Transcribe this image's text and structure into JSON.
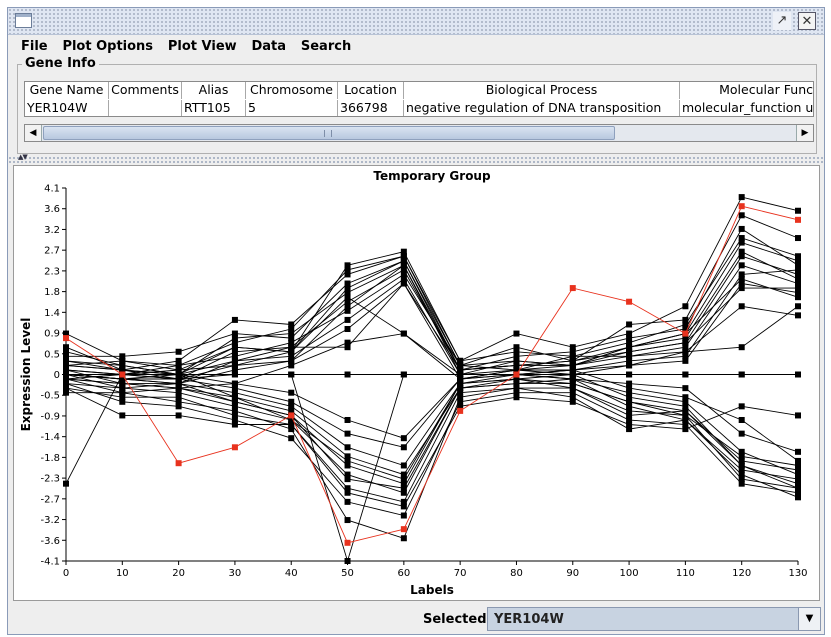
{
  "window": {
    "title": ""
  },
  "menu": [
    "File",
    "Plot Options",
    "Plot View",
    "Data",
    "Search"
  ],
  "gene_info": {
    "legend": "Gene Info",
    "columns": [
      "Gene Name",
      "Comments",
      "Alias",
      "Chromosome",
      "Location",
      "Biological Process",
      "Molecular Func"
    ],
    "row": [
      "YER104W",
      "",
      "RTT105",
      "5",
      "366798",
      "negative regulation of DNA transposition",
      "molecular_function u"
    ]
  },
  "chart_data": {
    "type": "line",
    "title": "Temporary Group",
    "xlabel": "Labels",
    "ylabel": "Expression Level",
    "xlim": [
      0,
      130
    ],
    "ylim": [
      -4.1,
      4.1
    ],
    "x": [
      0,
      10,
      20,
      30,
      40,
      50,
      60,
      70,
      80,
      90,
      100,
      110,
      120,
      130
    ],
    "x_ticks": [
      "0",
      "10",
      "20",
      "30",
      "40",
      "50",
      "60",
      "70",
      "80",
      "90",
      "100",
      "110",
      "120",
      "130"
    ],
    "y_ticks": [
      "4.1",
      "3.6",
      "3.2",
      "2.7",
      "2.3",
      "1.8",
      "1.4",
      "0.9",
      "0.5",
      "0",
      "-0.5",
      "-0.9",
      "-1.4",
      "-1.8",
      "-2.3",
      "-2.7",
      "-3.2",
      "-3.6",
      "-4.1"
    ],
    "highlight_color": "#e8321e",
    "series_color": "#000000",
    "highlighted": {
      "values": [
        0.8,
        0.0,
        -1.95,
        -1.6,
        -0.9,
        -3.7,
        -3.4,
        -0.8,
        0.0,
        1.9,
        1.6,
        0.9,
        3.7,
        3.4
      ]
    },
    "series": [
      {
        "values": [
          0.9,
          0.3,
          0.1,
          0.6,
          0.5,
          2.4,
          2.7,
          0.3,
          0.9,
          0.6,
          0.9,
          1.5,
          3.9,
          3.6
        ]
      },
      {
        "values": [
          0.6,
          0.1,
          0.3,
          1.2,
          1.1,
          2.2,
          2.6,
          0.2,
          0.6,
          0.3,
          1.1,
          1.2,
          3.5,
          3.0
        ]
      },
      {
        "values": [
          0.4,
          0.4,
          0.5,
          0.9,
          0.8,
          2.0,
          2.5,
          0.1,
          0.4,
          0.5,
          0.8,
          1.0,
          3.2,
          2.4
        ]
      },
      {
        "values": [
          0.3,
          0.2,
          0.0,
          0.8,
          0.9,
          1.8,
          2.4,
          0.0,
          0.3,
          0.2,
          0.6,
          0.9,
          2.9,
          2.5
        ]
      },
      {
        "values": [
          0.2,
          0.1,
          -0.1,
          0.5,
          0.6,
          1.6,
          2.3,
          0.1,
          0.2,
          0.3,
          0.5,
          0.7,
          2.6,
          2.2
        ]
      },
      {
        "values": [
          0.1,
          0.0,
          0.2,
          0.4,
          0.7,
          1.4,
          2.2,
          0.2,
          0.1,
          0.4,
          0.4,
          0.6,
          2.4,
          2.0
        ]
      },
      {
        "values": [
          0.0,
          -0.1,
          -0.2,
          0.3,
          0.4,
          1.2,
          2.1,
          0.0,
          0.0,
          0.1,
          0.3,
          0.4,
          2.2,
          2.3
        ]
      },
      {
        "values": [
          -0.1,
          0.0,
          0.1,
          0.2,
          0.3,
          1.0,
          2.0,
          -0.1,
          0.1,
          0.0,
          0.2,
          0.3,
          2.0,
          1.8
        ]
      },
      {
        "values": [
          0.2,
          0.3,
          0.2,
          0.7,
          1.0,
          2.3,
          2.6,
          0.3,
          0.5,
          0.4,
          0.7,
          1.1,
          3.0,
          2.6
        ]
      },
      {
        "values": [
          0.5,
          0.2,
          0.0,
          0.6,
          0.5,
          1.9,
          2.5,
          0.2,
          0.3,
          0.2,
          0.6,
          0.8,
          2.7,
          2.1
        ]
      },
      {
        "values": [
          0.1,
          -0.2,
          -0.3,
          -0.2,
          0.2,
          0.7,
          0.9,
          -0.1,
          0.0,
          0.1,
          0.2,
          0.5,
          1.5,
          1.3
        ]
      },
      {
        "values": [
          0.0,
          -0.3,
          -0.2,
          0.1,
          0.3,
          1.5,
          2.4,
          0.1,
          0.2,
          0.3,
          0.6,
          0.9,
          2.1,
          1.7
        ]
      },
      {
        "values": [
          -0.1,
          -0.4,
          -0.3,
          -0.6,
          -0.9,
          -2.0,
          -2.4,
          -0.2,
          -0.1,
          -0.2,
          -0.6,
          -0.8,
          -1.9,
          -2.1
        ]
      },
      {
        "values": [
          -0.2,
          -0.3,
          -0.4,
          -0.7,
          -1.0,
          -2.2,
          -2.6,
          -0.3,
          -0.2,
          -0.1,
          -0.7,
          -1.0,
          -2.1,
          -2.3
        ]
      },
      {
        "values": [
          -0.3,
          -0.5,
          -0.5,
          -0.9,
          -1.1,
          -2.5,
          -2.8,
          -0.4,
          -0.3,
          -0.3,
          -0.8,
          -0.9,
          -2.3,
          -2.5
        ]
      },
      {
        "values": [
          -0.1,
          -0.2,
          -0.3,
          -0.5,
          -0.8,
          -1.8,
          -2.2,
          -0.3,
          -0.1,
          0.0,
          -0.5,
          -0.7,
          -2.0,
          -2.4
        ]
      },
      {
        "values": [
          0.0,
          -0.1,
          -0.2,
          -0.4,
          -0.7,
          -1.6,
          -2.0,
          -0.2,
          0.0,
          -0.1,
          -0.4,
          -0.6,
          -1.7,
          -2.2
        ]
      },
      {
        "values": [
          -0.2,
          -0.6,
          -0.7,
          -1.0,
          -1.4,
          -2.8,
          -3.1,
          -0.6,
          -0.4,
          -0.4,
          -1.0,
          -1.1,
          -2.4,
          -2.6
        ]
      },
      {
        "values": [
          -0.4,
          -0.4,
          -0.6,
          -0.8,
          -1.2,
          -3.2,
          -3.6,
          -0.5,
          -0.3,
          -0.5,
          -1.2,
          -1.0,
          -2.2,
          -2.7
        ]
      },
      {
        "values": [
          0.1,
          0.0,
          -0.1,
          -0.3,
          -0.6,
          -1.3,
          -1.6,
          -0.1,
          0.1,
          0.1,
          -0.3,
          -0.5,
          -1.0,
          -1.9
        ]
      },
      {
        "values": [
          -0.1,
          -0.2,
          -0.2,
          -0.6,
          -0.9,
          -2.3,
          -2.5,
          -0.3,
          -0.2,
          -0.2,
          -0.6,
          -0.9,
          -1.8,
          -2.0
        ]
      },
      {
        "values": [
          0.0,
          -0.1,
          0.0,
          -0.5,
          -1.0,
          -1.9,
          -2.3,
          -0.2,
          -0.1,
          -0.3,
          -0.9,
          -0.8,
          -2.0,
          -2.5
        ]
      },
      {
        "values": [
          -0.3,
          -0.9,
          -0.9,
          -1.1,
          -1.1,
          -2.6,
          -2.9,
          -0.7,
          -0.5,
          -0.6,
          -1.1,
          -1.2,
          -0.7,
          -0.9
        ]
      },
      {
        "values": [
          0.3,
          0.1,
          0.0,
          -0.2,
          -0.4,
          -1.0,
          -1.4,
          -0.1,
          0.0,
          -0.1,
          -0.2,
          -0.3,
          -1.3,
          -1.7
        ]
      },
      {
        "values": [
          -2.4,
          0.0,
          -0.1,
          0.0,
          0.0,
          -4.1,
          0.0,
          0.0,
          0.0,
          0.0,
          0.0,
          0.0,
          0.0,
          0.0
        ]
      },
      {
        "values": [
          0.0,
          0.0,
          0.0,
          0.0,
          0.0,
          0.0,
          0.0,
          0.0,
          0.0,
          0.0,
          0.0,
          0.0,
          0.0,
          0.0
        ]
      },
      {
        "values": [
          0.0,
          -0.1,
          -0.1,
          0.2,
          0.5,
          1.7,
          0.9,
          0.0,
          0.1,
          0.2,
          0.4,
          0.5,
          0.6,
          1.5
        ]
      },
      {
        "values": [
          0.2,
          0.1,
          0.0,
          0.3,
          0.6,
          0.6,
          2.0,
          0.1,
          0.2,
          0.2,
          0.5,
          0.7,
          1.9,
          1.9
        ]
      }
    ]
  },
  "status": {
    "selected_label": "Selected:",
    "selected_value": "YER104W"
  }
}
